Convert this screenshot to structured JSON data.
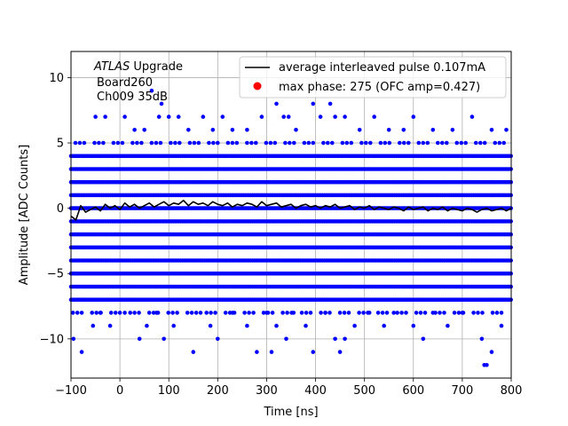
{
  "chart_data": {
    "type": "scatter",
    "title": "",
    "xlabel": "Time [ns]",
    "ylabel": "Amplitude [ADC Counts]",
    "xlim": [
      -100,
      800
    ],
    "ylim": [
      -13,
      12
    ],
    "grid": true,
    "x_ticks": [
      -100,
      0,
      100,
      200,
      300,
      400,
      500,
      600,
      700,
      800
    ],
    "y_ticks": [
      -10,
      -5,
      0,
      5,
      10
    ],
    "x_tick_labels": [
      "−100",
      "0",
      "100",
      "200",
      "300",
      "400",
      "500",
      "600",
      "700",
      "800"
    ],
    "y_tick_labels": [
      "−10",
      "−5",
      "0",
      "5",
      "10"
    ],
    "annotation": {
      "italic": "ATLAS",
      "rest": " Upgrade",
      "line2": "Board260",
      "line3": "Ch009 35dB"
    },
    "legend": {
      "placement": "top-right",
      "entries": [
        {
          "label": "average interleaved pulse 0.107mA",
          "marker": "line",
          "color": "#000000"
        },
        {
          "label": "max phase: 275 (OFC amp=0.427)",
          "marker": "dot",
          "color": "#ff0000"
        }
      ]
    },
    "series": [
      {
        "name": "average interleaved pulse 0.107mA",
        "kind": "line",
        "color": "#000000",
        "x": [
          -100,
          -90,
          -80,
          -70,
          -60,
          -50,
          -40,
          -30,
          -20,
          -10,
          0,
          10,
          20,
          30,
          40,
          50,
          60,
          70,
          80,
          90,
          100,
          110,
          120,
          130,
          140,
          150,
          160,
          170,
          180,
          190,
          200,
          210,
          220,
          230,
          240,
          250,
          260,
          270,
          280,
          290,
          300,
          310,
          320,
          330,
          340,
          350,
          360,
          370,
          380,
          390,
          400,
          410,
          420,
          430,
          440,
          450,
          460,
          470,
          480,
          490,
          500,
          510,
          520,
          530,
          540,
          550,
          560,
          570,
          580,
          590,
          600,
          610,
          620,
          630,
          640,
          650,
          660,
          670,
          680,
          690,
          700,
          710,
          720,
          730,
          740,
          750,
          760,
          770,
          780,
          790,
          800
        ],
        "y": [
          -0.6,
          -0.9,
          0.2,
          -0.3,
          -0.1,
          0.1,
          -0.2,
          0.3,
          0.0,
          0.2,
          -0.1,
          0.4,
          0.1,
          0.3,
          0.0,
          0.2,
          0.4,
          0.1,
          0.3,
          0.5,
          0.2,
          0.4,
          0.3,
          0.6,
          0.2,
          0.5,
          0.3,
          0.4,
          0.2,
          0.5,
          0.3,
          0.2,
          0.4,
          0.1,
          0.3,
          0.2,
          0.4,
          0.3,
          0.1,
          0.5,
          0.2,
          0.3,
          0.4,
          0.1,
          0.2,
          0.3,
          0.0,
          0.2,
          0.3,
          0.1,
          0.2,
          0.0,
          0.2,
          0.1,
          0.3,
          0.0,
          0.1,
          0.2,
          -0.1,
          0.1,
          0.0,
          0.2,
          -0.1,
          0.1,
          0.0,
          -0.1,
          0.1,
          0.0,
          -0.2,
          0.1,
          -0.1,
          0.0,
          0.1,
          -0.2,
          0.0,
          -0.1,
          0.1,
          -0.2,
          0.0,
          -0.1,
          -0.2,
          0.0,
          -0.1,
          -0.3,
          -0.1,
          0.0,
          -0.2,
          -0.1,
          0.0,
          -0.2,
          0.0
        ]
      },
      {
        "name": "samples",
        "kind": "dot",
        "color": "#0000ff",
        "dense_levels": [
          -7,
          -6,
          -5,
          -4,
          -3,
          -2,
          -1,
          0,
          1,
          2,
          3,
          4
        ],
        "medium_levels": [
          -8,
          5
        ],
        "points": [
          [
            -95,
            -10
          ],
          [
            -78,
            -11
          ],
          [
            -55,
            -9
          ],
          [
            -40,
            -8
          ],
          [
            -20,
            -9
          ],
          [
            10,
            -8
          ],
          [
            40,
            -10
          ],
          [
            55,
            -9
          ],
          [
            75,
            -8
          ],
          [
            90,
            -10
          ],
          [
            110,
            -9
          ],
          [
            150,
            -11
          ],
          [
            165,
            -8
          ],
          [
            185,
            -9
          ],
          [
            200,
            -10
          ],
          [
            230,
            -8
          ],
          [
            260,
            -9
          ],
          [
            280,
            -11
          ],
          [
            300,
            -8
          ],
          [
            310,
            -11
          ],
          [
            320,
            -9
          ],
          [
            340,
            -10
          ],
          [
            355,
            -8
          ],
          [
            380,
            -9
          ],
          [
            395,
            -11
          ],
          [
            420,
            -8
          ],
          [
            440,
            -10
          ],
          [
            450,
            -11
          ],
          [
            460,
            -10
          ],
          [
            480,
            -9
          ],
          [
            510,
            -8
          ],
          [
            540,
            -9
          ],
          [
            560,
            -8
          ],
          [
            600,
            -9
          ],
          [
            620,
            -10
          ],
          [
            640,
            -8
          ],
          [
            670,
            -9
          ],
          [
            700,
            -8
          ],
          [
            740,
            -10
          ],
          [
            745,
            -12
          ],
          [
            750,
            -12
          ],
          [
            760,
            -11
          ],
          [
            780,
            -9
          ],
          [
            -50,
            7
          ],
          [
            -30,
            7
          ],
          [
            10,
            7
          ],
          [
            30,
            6
          ],
          [
            50,
            6
          ],
          [
            65,
            9
          ],
          [
            80,
            7
          ],
          [
            85,
            8
          ],
          [
            100,
            7
          ],
          [
            120,
            7
          ],
          [
            140,
            6
          ],
          [
            170,
            7
          ],
          [
            190,
            6
          ],
          [
            210,
            7
          ],
          [
            230,
            6
          ],
          [
            260,
            6
          ],
          [
            290,
            7
          ],
          [
            320,
            8
          ],
          [
            335,
            7
          ],
          [
            345,
            7
          ],
          [
            360,
            6
          ],
          [
            395,
            8
          ],
          [
            410,
            7
          ],
          [
            430,
            8
          ],
          [
            440,
            7
          ],
          [
            460,
            7
          ],
          [
            490,
            6
          ],
          [
            520,
            7
          ],
          [
            550,
            6
          ],
          [
            580,
            6
          ],
          [
            600,
            7
          ],
          [
            640,
            6
          ],
          [
            680,
            6
          ],
          [
            720,
            7
          ],
          [
            760,
            6
          ],
          [
            790,
            6
          ]
        ]
      }
    ]
  }
}
